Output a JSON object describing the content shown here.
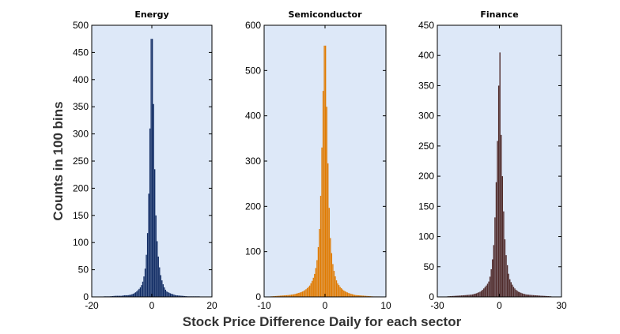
{
  "figure": {
    "ylabel": "Counts in 100 bins",
    "xlabel": "Stock Price Difference Daily for each sector",
    "background": "#ffffff",
    "plot_background": "#dde8f8"
  },
  "chart_data": [
    {
      "type": "histogram",
      "title": "Energy",
      "color": "#0f2a63",
      "xlim": [
        -20,
        20
      ],
      "ylim": [
        0,
        500
      ],
      "xticks": [
        -20,
        0,
        20
      ],
      "yticks": [
        0,
        50,
        100,
        150,
        200,
        250,
        300,
        350,
        400,
        450,
        500
      ],
      "grid": false,
      "bins": {
        "x": [
          -16,
          -14,
          -12,
          -10,
          -9,
          -8,
          -7,
          -6,
          -5.5,
          -5,
          -4.5,
          -4,
          -3.5,
          -3,
          -2.5,
          -2,
          -1.6,
          -1.2,
          -0.8,
          -0.4,
          0,
          0.4,
          0.8,
          1.2,
          1.6,
          2,
          2.5,
          3,
          3.5,
          4,
          4.5,
          5,
          6,
          7,
          8,
          10,
          12,
          16
        ],
        "values": [
          1,
          1,
          2,
          2,
          3,
          3,
          4,
          6,
          8,
          10,
          13,
          16,
          20,
          28,
          40,
          60,
          95,
          140,
          240,
          380,
          475,
          420,
          290,
          180,
          120,
          85,
          58,
          40,
          28,
          20,
          14,
          10,
          7,
          5,
          3,
          2,
          1,
          1
        ]
      }
    },
    {
      "type": "histogram",
      "title": "Semiconductor",
      "color": "#e07a00",
      "xlim": [
        -10,
        10
      ],
      "ylim": [
        0,
        600
      ],
      "xticks": [
        -10,
        0,
        10
      ],
      "yticks": [
        0,
        100,
        200,
        300,
        400,
        500,
        600
      ],
      "grid": false,
      "bins": {
        "x": [
          -9,
          -8,
          -7,
          -6,
          -5,
          -4.5,
          -4,
          -3.5,
          -3,
          -2.5,
          -2,
          -1.6,
          -1.2,
          -0.9,
          -0.6,
          -0.4,
          -0.2,
          0,
          0.2,
          0.4,
          0.6,
          0.9,
          1.2,
          1.6,
          2,
          2.5,
          3,
          3.5,
          4,
          4.5,
          5,
          6,
          7,
          8,
          9
        ],
        "values": [
          1,
          2,
          3,
          4,
          6,
          8,
          10,
          13,
          18,
          25,
          38,
          55,
          90,
          150,
          260,
          400,
          510,
          555,
          480,
          360,
          230,
          130,
          80,
          50,
          32,
          22,
          15,
          11,
          8,
          6,
          4,
          3,
          2,
          1,
          1
        ]
      }
    },
    {
      "type": "histogram",
      "title": "Finance",
      "color": "#4f2a2a",
      "xlim": [
        -30,
        30
      ],
      "ylim": [
        0,
        450
      ],
      "xticks": [
        -30,
        0,
        30
      ],
      "yticks": [
        0,
        50,
        100,
        150,
        200,
        250,
        300,
        350,
        400,
        450
      ],
      "grid": false,
      "bins": {
        "x": [
          -25,
          -20,
          -16,
          -13,
          -11,
          -9,
          -8,
          -7,
          -6,
          -5,
          -4.4,
          -3.8,
          -3.2,
          -2.6,
          -2,
          -1.4,
          -0.8,
          -0.3,
          0,
          0.3,
          0.8,
          1.4,
          2,
          2.6,
          3.2,
          3.8,
          4.4,
          5,
          6,
          7,
          8,
          9,
          11,
          13,
          16,
          20,
          25
        ],
        "values": [
          1,
          2,
          3,
          4,
          6,
          9,
          12,
          16,
          20,
          26,
          35,
          48,
          65,
          90,
          140,
          200,
          270,
          350,
          405,
          360,
          280,
          210,
          150,
          100,
          72,
          55,
          40,
          30,
          22,
          16,
          12,
          9,
          6,
          4,
          3,
          2,
          1
        ]
      }
    }
  ]
}
